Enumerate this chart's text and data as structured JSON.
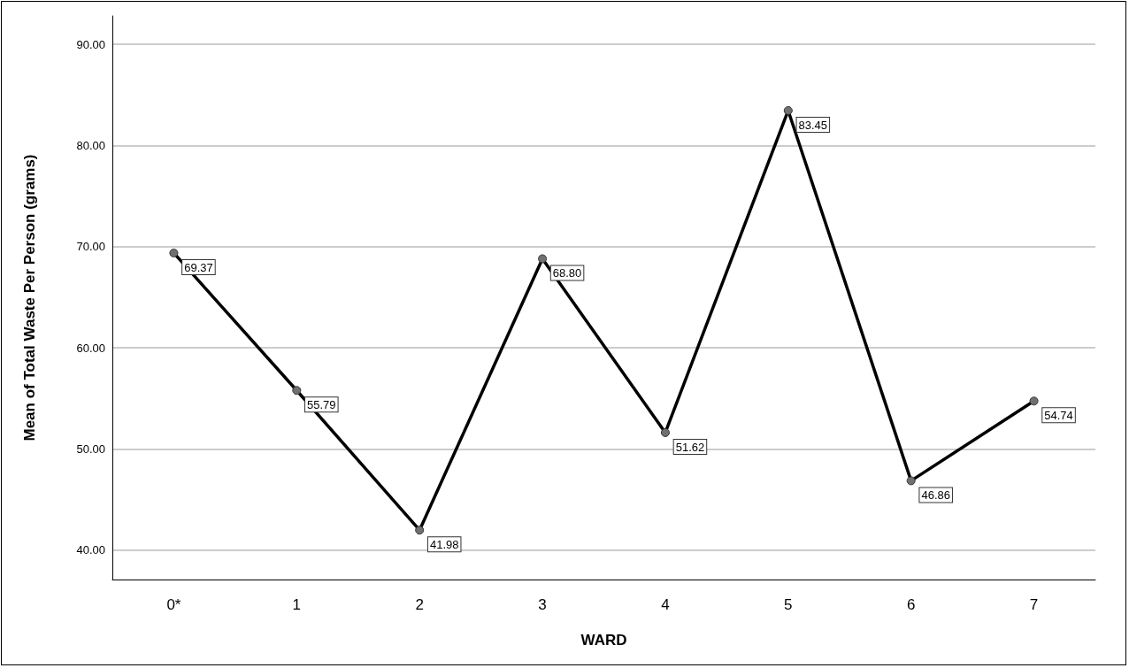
{
  "chart_data": {
    "type": "line",
    "xlabel": "WARD",
    "ylabel": "Mean of Total Waste Per Person (grams)",
    "categories": [
      "0*",
      "1",
      "2",
      "3",
      "4",
      "5",
      "6",
      "7"
    ],
    "series": [
      {
        "color": "#000000",
        "values": [
          69.37,
          55.79,
          41.98,
          68.8,
          51.62,
          83.45,
          46.86,
          54.74
        ],
        "value_labels": [
          "69.37",
          "55.79",
          "41.98",
          "68.80",
          "51.62",
          "83.45",
          "46.86",
          "54.74"
        ]
      }
    ],
    "ylim": [
      37.1,
      92.8
    ],
    "yticks": [
      {
        "value": 40,
        "label": "40.00"
      },
      {
        "value": 50,
        "label": "50.00"
      },
      {
        "value": 60,
        "label": "60.00"
      },
      {
        "value": 70,
        "label": "70.00"
      },
      {
        "value": 80,
        "label": "80.00"
      },
      {
        "value": 90,
        "label": "90.00"
      }
    ],
    "grid": "y",
    "marker": "circle",
    "line_style": "solid"
  }
}
